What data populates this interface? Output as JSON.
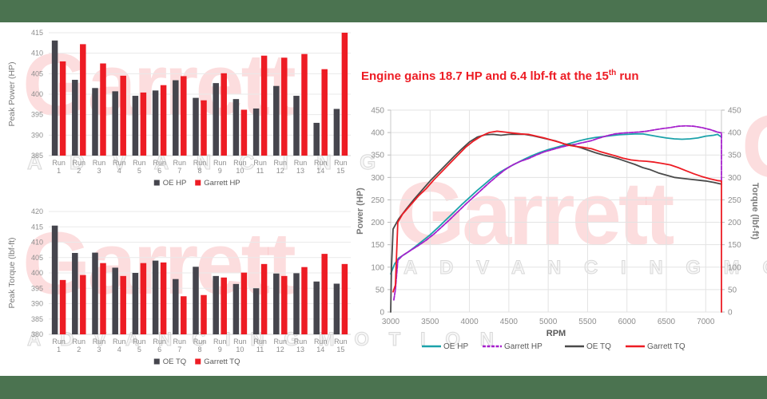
{
  "page": {
    "band_color": "#4B7350",
    "background": "#ffffff"
  },
  "watermarks": {
    "brand": "Garrett",
    "tagline": "A D V A N C I N G",
    "tagline_full": "A D V A N C I N G     M O T I O N",
    "fragment": "G",
    "brand_color_rgba": "rgba(237,28,36,0.15)"
  },
  "title": {
    "part1": "Engine gains 18.7 HP and 6.4 lbf-ft at the 15",
    "sup": "th",
    "part2": " run",
    "color": "#ED1C24"
  },
  "colors": {
    "red": "#ED1C24",
    "dark_bar": "#45454D",
    "dark_line": "#4A4A4A",
    "teal": "#1BA2AA",
    "purple": "#A620CC",
    "tick_text": "#8E8E8E",
    "axis_title": "#7A7A7A",
    "legend_text": "#595959",
    "grid": "#EAEAEA",
    "axis_line": "#C8C8C8"
  },
  "chart_data": [
    {
      "id": "peak_power",
      "type": "bar",
      "ylabel": "Peak Power (HP)",
      "ylim": [
        385,
        415
      ],
      "ytick_step": 5,
      "yticks": [
        415,
        410,
        405,
        400,
        395,
        390,
        385
      ],
      "grid": true,
      "legend_position": "bottom",
      "categories": [
        "Run 1",
        "Run 2",
        "Run 3",
        "Run 4",
        "Run 5",
        "Run 6",
        "Run 7",
        "Run 8",
        "Run 9",
        "Run 10",
        "Run 11",
        "Run 12",
        "Run 13",
        "Run 14",
        "Run 15"
      ],
      "series": [
        {
          "name": "OE HP",
          "color": "#45454D",
          "values": [
            413.1,
            403.5,
            401.5,
            400.7,
            399.6,
            400.9,
            403.4,
            399.1,
            402.7,
            398.8,
            396.5,
            402.0,
            399.6,
            393.0,
            396.4
          ]
        },
        {
          "name": "Garrett HP",
          "color": "#ED1C24",
          "values": [
            408.0,
            412.2,
            407.5,
            404.5,
            400.4,
            402.2,
            404.4,
            398.5,
            405.1,
            396.2,
            409.4,
            408.9,
            409.8,
            406.1,
            415.0
          ]
        }
      ]
    },
    {
      "id": "peak_torque",
      "type": "bar",
      "ylabel": "Peak Torque (lbf-ft)",
      "ylim": [
        380,
        420
      ],
      "ytick_step": 5,
      "yticks": [
        420,
        415,
        410,
        405,
        400,
        395,
        390,
        385,
        380
      ],
      "grid": true,
      "legend_position": "bottom",
      "categories": [
        "Run 1",
        "Run 2",
        "Run 3",
        "Run 4",
        "Run 5",
        "Run 6",
        "Run 7",
        "Run 8",
        "Run 9",
        "Run 10",
        "Run 11",
        "Run 12",
        "Run 13",
        "Run 14",
        "Run 15"
      ],
      "series": [
        {
          "name": "OE TQ",
          "color": "#45454D",
          "values": [
            415.4,
            406.5,
            406.6,
            401.7,
            400.0,
            404.0,
            398.0,
            402.0,
            399.0,
            396.4,
            395.0,
            399.8,
            399.9,
            397.2,
            396.5
          ]
        },
        {
          "name": "Garrett TQ",
          "color": "#ED1C24",
          "values": [
            397.7,
            399.3,
            403.2,
            399.0,
            403.2,
            403.4,
            392.4,
            392.8,
            398.5,
            400.1,
            402.9,
            399.0,
            401.9,
            406.2,
            402.9
          ]
        }
      ]
    },
    {
      "id": "dyno_curves",
      "type": "line",
      "xlabel": "RPM",
      "ylabel_left": "Power (HP)",
      "ylabel_right": "Torque (lbf-ft)",
      "xlim": [
        3000,
        7200
      ],
      "ylim": [
        0,
        450
      ],
      "xtick_step": 500,
      "xticks": [
        3000,
        3500,
        4000,
        4500,
        5000,
        5500,
        6000,
        6500,
        7000
      ],
      "yticks": [
        450,
        400,
        350,
        300,
        250,
        200,
        150,
        100,
        50,
        0
      ],
      "grid": true,
      "legend_position": "bottom",
      "series": [
        {
          "name": "OE HP",
          "color": "#1BA2AA",
          "axis": "left",
          "dashed": false,
          "points": [
            [
              3000,
              85
            ],
            [
              3050,
              107
            ],
            [
              3100,
              120
            ],
            [
              3200,
              131
            ],
            [
              3300,
              144
            ],
            [
              3400,
              158
            ],
            [
              3500,
              172
            ],
            [
              3600,
              188
            ],
            [
              3700,
              205
            ],
            [
              3800,
              222
            ],
            [
              3900,
              239
            ],
            [
              4000,
              255
            ],
            [
              4100,
              271
            ],
            [
              4200,
              286
            ],
            [
              4300,
              301
            ],
            [
              4400,
              313
            ],
            [
              4500,
              323
            ],
            [
              4600,
              332
            ],
            [
              4700,
              341
            ],
            [
              4800,
              349
            ],
            [
              4900,
              356
            ],
            [
              5000,
              362
            ],
            [
              5100,
              367
            ],
            [
              5200,
              372
            ],
            [
              5300,
              377
            ],
            [
              5400,
              382
            ],
            [
              5500,
              386
            ],
            [
              5600,
              389
            ],
            [
              5700,
              391
            ],
            [
              5800,
              393
            ],
            [
              5900,
              395
            ],
            [
              6000,
              396
            ],
            [
              6100,
              397
            ],
            [
              6200,
              397
            ],
            [
              6300,
              394
            ],
            [
              6400,
              391
            ],
            [
              6500,
              388
            ],
            [
              6600,
              386
            ],
            [
              6700,
              385
            ],
            [
              6800,
              386
            ],
            [
              6900,
              388
            ],
            [
              7000,
              392
            ],
            [
              7100,
              394
            ],
            [
              7150,
              396
            ],
            [
              7200,
              390
            ]
          ]
        },
        {
          "name": "Garrett HP",
          "color": "#A620CC",
          "axis": "left",
          "dashed": true,
          "points": [
            [
              3040,
              27
            ],
            [
              3060,
              50
            ],
            [
              3090,
              115
            ],
            [
              3150,
              126
            ],
            [
              3250,
              137
            ],
            [
              3350,
              148
            ],
            [
              3450,
              160
            ],
            [
              3550,
              174
            ],
            [
              3650,
              190
            ],
            [
              3750,
              206
            ],
            [
              3850,
              223
            ],
            [
              3950,
              240
            ],
            [
              4050,
              256
            ],
            [
              4150,
              272
            ],
            [
              4250,
              288
            ],
            [
              4350,
              303
            ],
            [
              4450,
              317
            ],
            [
              4550,
              328
            ],
            [
              4650,
              336
            ],
            [
              4750,
              342
            ],
            [
              4850,
              350
            ],
            [
              4950,
              357
            ],
            [
              5050,
              362
            ],
            [
              5150,
              367
            ],
            [
              5250,
              371
            ],
            [
              5350,
              374
            ],
            [
              5450,
              378
            ],
            [
              5550,
              382
            ],
            [
              5650,
              388
            ],
            [
              5750,
              393
            ],
            [
              5850,
              397
            ],
            [
              5950,
              399
            ],
            [
              6050,
              400
            ],
            [
              6150,
              401
            ],
            [
              6250,
              403
            ],
            [
              6350,
              406
            ],
            [
              6450,
              409
            ],
            [
              6550,
              411
            ],
            [
              6650,
              414
            ],
            [
              6750,
              415
            ],
            [
              6850,
              414
            ],
            [
              6950,
              411
            ],
            [
              7050,
              407
            ],
            [
              7150,
              401
            ],
            [
              7200,
              399
            ],
            [
              7200,
              290
            ]
          ]
        },
        {
          "name": "OE TQ",
          "color": "#4A4A4A",
          "axis": "right",
          "dashed": false,
          "points": [
            [
              3000,
              0
            ],
            [
              3010,
              100
            ],
            [
              3030,
              185
            ],
            [
              3100,
              207
            ],
            [
              3200,
              230
            ],
            [
              3300,
              252
            ],
            [
              3400,
              272
            ],
            [
              3500,
              292
            ],
            [
              3600,
              310
            ],
            [
              3700,
              328
            ],
            [
              3800,
              346
            ],
            [
              3900,
              363
            ],
            [
              4000,
              379
            ],
            [
              4100,
              390
            ],
            [
              4200,
              395
            ],
            [
              4300,
              396
            ],
            [
              4400,
              394
            ],
            [
              4500,
              396
            ],
            [
              4600,
              396
            ],
            [
              4700,
              396
            ],
            [
              4800,
              393
            ],
            [
              4900,
              389
            ],
            [
              5000,
              385
            ],
            [
              5100,
              381
            ],
            [
              5200,
              375
            ],
            [
              5300,
              372
            ],
            [
              5400,
              367
            ],
            [
              5500,
              361
            ],
            [
              5600,
              355
            ],
            [
              5700,
              350
            ],
            [
              5800,
              346
            ],
            [
              5900,
              341
            ],
            [
              6000,
              335
            ],
            [
              6100,
              329
            ],
            [
              6200,
              322
            ],
            [
              6300,
              317
            ],
            [
              6400,
              310
            ],
            [
              6500,
              305
            ],
            [
              6600,
              300
            ],
            [
              6700,
              298
            ],
            [
              6800,
              296
            ],
            [
              6900,
              294
            ],
            [
              7000,
              292
            ],
            [
              7100,
              289
            ],
            [
              7200,
              285
            ]
          ]
        },
        {
          "name": "Garrett TQ",
          "color": "#ED1C24",
          "axis": "right",
          "dashed": false,
          "points": [
            [
              3030,
              45
            ],
            [
              3060,
              60
            ],
            [
              3090,
              200
            ],
            [
              3150,
              218
            ],
            [
              3250,
              238
            ],
            [
              3350,
              258
            ],
            [
              3450,
              275
            ],
            [
              3550,
              295
            ],
            [
              3650,
              313
            ],
            [
              3750,
              331
            ],
            [
              3850,
              349
            ],
            [
              3950,
              367
            ],
            [
              4050,
              381
            ],
            [
              4150,
              392
            ],
            [
              4250,
              400
            ],
            [
              4350,
              403
            ],
            [
              4450,
              401
            ],
            [
              4550,
              399
            ],
            [
              4650,
              397
            ],
            [
              4750,
              396
            ],
            [
              4850,
              392
            ],
            [
              4950,
              388
            ],
            [
              5050,
              383
            ],
            [
              5150,
              378
            ],
            [
              5250,
              372
            ],
            [
              5350,
              369
            ],
            [
              5450,
              367
            ],
            [
              5550,
              364
            ],
            [
              5650,
              358
            ],
            [
              5750,
              353
            ],
            [
              5850,
              348
            ],
            [
              5950,
              343
            ],
            [
              6050,
              339
            ],
            [
              6150,
              337
            ],
            [
              6250,
              336
            ],
            [
              6350,
              334
            ],
            [
              6450,
              331
            ],
            [
              6550,
              328
            ],
            [
              6650,
              322
            ],
            [
              6750,
              315
            ],
            [
              6850,
              308
            ],
            [
              6950,
              302
            ],
            [
              7050,
              297
            ],
            [
              7150,
              293
            ],
            [
              7200,
              292
            ],
            [
              7200,
              0
            ]
          ]
        }
      ]
    }
  ]
}
